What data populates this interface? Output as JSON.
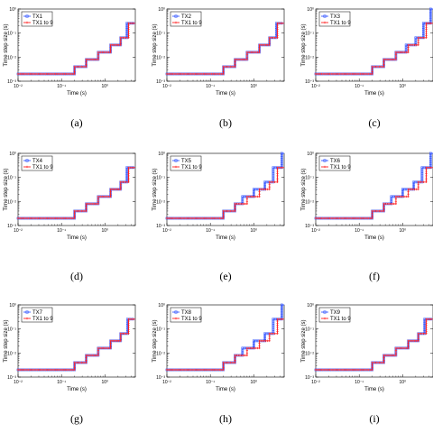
{
  "chart_data": [
    {
      "panel": "(a)",
      "type": "line",
      "xlabel": "Time (s)",
      "ylabel": "Time step size (s)",
      "xscale": "log",
      "yscale": "log",
      "xlim": [
        0.01,
        5
      ],
      "ylim": [
        0.001,
        1
      ],
      "xticks": [
        "10⁻²",
        "10⁻¹",
        "10⁰"
      ],
      "yticks": [
        "10⁻³",
        "10⁻²",
        "10⁻¹",
        "10⁰"
      ],
      "legend_position": "top-left",
      "series": [
        {
          "name": "TX1",
          "color": "#3355ff",
          "marker": "square",
          "x": [
            0.01,
            0.2,
            0.2,
            0.37,
            0.37,
            0.7,
            0.7,
            1.35,
            1.35,
            2.3,
            2.3,
            3.2,
            3.2,
            5
          ],
          "y": [
            0.002,
            0.002,
            0.004,
            0.004,
            0.008,
            0.008,
            0.016,
            0.016,
            0.032,
            0.032,
            0.064,
            0.064,
            0.256,
            0.256
          ]
        },
        {
          "name": "TX1 to 9",
          "color": "#ff2020",
          "marker": "star",
          "x": [
            0.01,
            0.2,
            0.2,
            0.37,
            0.37,
            0.7,
            0.7,
            1.35,
            1.35,
            2.3,
            2.3,
            3.5,
            3.5,
            5
          ],
          "y": [
            0.002,
            0.002,
            0.004,
            0.004,
            0.008,
            0.008,
            0.016,
            0.016,
            0.032,
            0.032,
            0.064,
            0.064,
            0.256,
            0.256
          ]
        }
      ]
    },
    {
      "panel": "(b)",
      "type": "line",
      "xlabel": "Time (s)",
      "ylabel": "Time step size (s)",
      "xscale": "log",
      "yscale": "log",
      "xlim": [
        0.01,
        5
      ],
      "ylim": [
        0.001,
        1
      ],
      "xticks": [
        "10⁻²",
        "10⁻¹",
        "10⁰"
      ],
      "yticks": [
        "10⁻³",
        "10⁻²",
        "10⁻¹",
        "10⁰"
      ],
      "legend_position": "top-left",
      "series": [
        {
          "name": "TX2",
          "color": "#3355ff",
          "marker": "square",
          "x": [
            0.01,
            0.2,
            0.2,
            0.37,
            0.37,
            0.7,
            0.7,
            1.35,
            1.35,
            2.3,
            2.3,
            3.3,
            3.3,
            5
          ],
          "y": [
            0.002,
            0.002,
            0.004,
            0.004,
            0.008,
            0.008,
            0.016,
            0.016,
            0.032,
            0.032,
            0.064,
            0.064,
            0.256,
            0.256
          ]
        },
        {
          "name": "TX1 to 9",
          "color": "#ff2020",
          "marker": "star",
          "x": [
            0.01,
            0.2,
            0.2,
            0.37,
            0.37,
            0.7,
            0.7,
            1.35,
            1.35,
            2.3,
            2.3,
            3.5,
            3.5,
            5
          ],
          "y": [
            0.002,
            0.002,
            0.004,
            0.004,
            0.008,
            0.008,
            0.016,
            0.016,
            0.032,
            0.032,
            0.064,
            0.064,
            0.256,
            0.256
          ]
        }
      ]
    },
    {
      "panel": "(c)",
      "type": "line",
      "xlabel": "Time (s)",
      "ylabel": "Time step size (s)",
      "xscale": "log",
      "yscale": "log",
      "xlim": [
        0.01,
        5
      ],
      "ylim": [
        0.001,
        1
      ],
      "xticks": [
        "10⁻²",
        "10⁻¹",
        "10⁰"
      ],
      "yticks": [
        "10⁻³",
        "10⁻²",
        "10⁻¹",
        "10⁰"
      ],
      "legend_position": "top-left",
      "series": [
        {
          "name": "TX3",
          "color": "#3355ff",
          "marker": "square",
          "x": [
            0.01,
            0.2,
            0.2,
            0.37,
            0.37,
            0.7,
            0.7,
            1.2,
            1.2,
            2.0,
            2.0,
            3.0,
            3.0,
            4.4,
            4.4,
            5
          ],
          "y": [
            0.002,
            0.002,
            0.004,
            0.004,
            0.008,
            0.008,
            0.016,
            0.016,
            0.032,
            0.032,
            0.064,
            0.064,
            0.256,
            0.256,
            1,
            1
          ]
        },
        {
          "name": "TX1 to 9",
          "color": "#ff2020",
          "marker": "star",
          "x": [
            0.01,
            0.2,
            0.2,
            0.37,
            0.37,
            0.7,
            0.7,
            1.35,
            1.35,
            2.3,
            2.3,
            3.5,
            3.5,
            5
          ],
          "y": [
            0.002,
            0.002,
            0.004,
            0.004,
            0.008,
            0.008,
            0.016,
            0.016,
            0.032,
            0.032,
            0.064,
            0.064,
            0.256,
            0.256
          ]
        }
      ]
    },
    {
      "panel": "(d)",
      "type": "line",
      "xlabel": "Time (s)",
      "ylabel": "Time step size (s)",
      "xscale": "log",
      "yscale": "log",
      "xlim": [
        0.01,
        5
      ],
      "ylim": [
        0.001,
        1
      ],
      "xticks": [
        "10⁻²",
        "10⁻¹",
        "10⁰"
      ],
      "yticks": [
        "10⁻³",
        "10⁻²",
        "10⁻¹",
        "10⁰"
      ],
      "legend_position": "top-left",
      "series": [
        {
          "name": "TX4",
          "color": "#3355ff",
          "marker": "square",
          "x": [
            0.01,
            0.2,
            0.2,
            0.37,
            0.37,
            0.7,
            0.7,
            1.35,
            1.35,
            2.3,
            2.3,
            3.2,
            3.2,
            5
          ],
          "y": [
            0.002,
            0.002,
            0.004,
            0.004,
            0.008,
            0.008,
            0.016,
            0.016,
            0.032,
            0.032,
            0.064,
            0.064,
            0.256,
            0.256
          ]
        },
        {
          "name": "TX1 to 9",
          "color": "#ff2020",
          "marker": "star",
          "x": [
            0.01,
            0.2,
            0.2,
            0.37,
            0.37,
            0.7,
            0.7,
            1.35,
            1.35,
            2.3,
            2.3,
            3.5,
            3.5,
            5
          ],
          "y": [
            0.002,
            0.002,
            0.004,
            0.004,
            0.008,
            0.008,
            0.016,
            0.016,
            0.032,
            0.032,
            0.064,
            0.064,
            0.256,
            0.256
          ]
        }
      ]
    },
    {
      "panel": "(e)",
      "type": "line",
      "xlabel": "Time (s)",
      "ylabel": "Time step size (s)",
      "xscale": "log",
      "yscale": "log",
      "xlim": [
        0.01,
        5
      ],
      "ylim": [
        0.001,
        1
      ],
      "xticks": [
        "10⁻²",
        "10⁻¹",
        "10⁰"
      ],
      "yticks": [
        "10⁻³",
        "10⁻²",
        "10⁻¹",
        "10⁰"
      ],
      "legend_position": "top-left",
      "series": [
        {
          "name": "TX5",
          "color": "#3355ff",
          "marker": "square",
          "x": [
            0.01,
            0.2,
            0.2,
            0.37,
            0.37,
            0.55,
            0.55,
            1.0,
            1.0,
            1.8,
            1.8,
            2.8,
            2.8,
            4.4,
            4.4,
            5
          ],
          "y": [
            0.002,
            0.002,
            0.004,
            0.004,
            0.008,
            0.008,
            0.016,
            0.016,
            0.032,
            0.032,
            0.064,
            0.064,
            0.256,
            0.256,
            1,
            1
          ]
        },
        {
          "name": "TX1 to 9",
          "color": "#ff2020",
          "marker": "star",
          "x": [
            0.01,
            0.2,
            0.2,
            0.37,
            0.37,
            0.7,
            0.7,
            1.35,
            1.35,
            2.3,
            2.3,
            3.5,
            3.5,
            5
          ],
          "y": [
            0.002,
            0.002,
            0.004,
            0.004,
            0.008,
            0.008,
            0.016,
            0.016,
            0.032,
            0.032,
            0.064,
            0.064,
            0.256,
            0.256
          ]
        }
      ]
    },
    {
      "panel": "(f)",
      "type": "line",
      "xlabel": "Time (s)",
      "ylabel": "Time step size (s)",
      "xscale": "log",
      "yscale": "log",
      "xlim": [
        0.01,
        5
      ],
      "ylim": [
        0.001,
        1
      ],
      "xticks": [
        "10⁻²",
        "10⁻¹",
        "10⁰"
      ],
      "yticks": [
        "10⁻³",
        "10⁻²",
        "10⁻¹",
        "10⁰"
      ],
      "legend_position": "top-left",
      "series": [
        {
          "name": "TX6",
          "color": "#3355ff",
          "marker": "square",
          "x": [
            0.01,
            0.2,
            0.2,
            0.37,
            0.37,
            0.55,
            0.55,
            1.0,
            1.0,
            1.8,
            1.8,
            2.8,
            2.8,
            4.4,
            4.4,
            5
          ],
          "y": [
            0.002,
            0.002,
            0.004,
            0.004,
            0.008,
            0.008,
            0.016,
            0.016,
            0.032,
            0.032,
            0.064,
            0.064,
            0.256,
            0.256,
            1,
            1
          ]
        },
        {
          "name": "TX1 to 9",
          "color": "#ff2020",
          "marker": "star",
          "x": [
            0.01,
            0.2,
            0.2,
            0.37,
            0.37,
            0.7,
            0.7,
            1.35,
            1.35,
            2.3,
            2.3,
            3.5,
            3.5,
            5
          ],
          "y": [
            0.002,
            0.002,
            0.004,
            0.004,
            0.008,
            0.008,
            0.016,
            0.016,
            0.032,
            0.032,
            0.064,
            0.064,
            0.256,
            0.256
          ]
        }
      ]
    },
    {
      "panel": "(g)",
      "type": "line",
      "xlabel": "Time (s)",
      "ylabel": "Time step size (s)",
      "xscale": "log",
      "yscale": "log",
      "xlim": [
        0.01,
        5
      ],
      "ylim": [
        0.001,
        1
      ],
      "xticks": [
        "10⁻²",
        "10⁻¹",
        "10⁰"
      ],
      "yticks": [
        "10⁻³",
        "10⁻²",
        "10⁻¹",
        "10⁰"
      ],
      "legend_position": "top-left",
      "series": [
        {
          "name": "TX7",
          "color": "#3355ff",
          "marker": "square",
          "x": [
            0.01,
            0.2,
            0.2,
            0.37,
            0.37,
            0.7,
            0.7,
            1.35,
            1.35,
            2.3,
            2.3,
            3.3,
            3.3,
            5
          ],
          "y": [
            0.002,
            0.002,
            0.004,
            0.004,
            0.008,
            0.008,
            0.016,
            0.016,
            0.032,
            0.032,
            0.064,
            0.064,
            0.256,
            0.256
          ]
        },
        {
          "name": "TX1 to 9",
          "color": "#ff2020",
          "marker": "star",
          "x": [
            0.01,
            0.2,
            0.2,
            0.37,
            0.37,
            0.7,
            0.7,
            1.35,
            1.35,
            2.3,
            2.3,
            3.5,
            3.5,
            5
          ],
          "y": [
            0.002,
            0.002,
            0.004,
            0.004,
            0.008,
            0.008,
            0.016,
            0.016,
            0.032,
            0.032,
            0.064,
            0.064,
            0.256,
            0.256
          ]
        }
      ]
    },
    {
      "panel": "(h)",
      "type": "line",
      "xlabel": "Time (s)",
      "ylabel": "Time step size (s)",
      "xscale": "log",
      "yscale": "log",
      "xlim": [
        0.01,
        5
      ],
      "ylim": [
        0.001,
        1
      ],
      "xticks": [
        "10⁻²",
        "10⁻¹",
        "10⁰"
      ],
      "yticks": [
        "10⁻³",
        "10⁻²",
        "10⁻¹",
        "10⁰"
      ],
      "legend_position": "top-left",
      "series": [
        {
          "name": "TX8",
          "color": "#3355ff",
          "marker": "square",
          "x": [
            0.01,
            0.2,
            0.2,
            0.37,
            0.37,
            0.55,
            0.55,
            1.0,
            1.0,
            1.8,
            1.8,
            2.8,
            2.8,
            4.4,
            4.4,
            5
          ],
          "y": [
            0.002,
            0.002,
            0.004,
            0.004,
            0.008,
            0.008,
            0.016,
            0.016,
            0.032,
            0.032,
            0.064,
            0.064,
            0.256,
            0.256,
            1,
            1
          ]
        },
        {
          "name": "TX1 to 9",
          "color": "#ff2020",
          "marker": "star",
          "x": [
            0.01,
            0.2,
            0.2,
            0.37,
            0.37,
            0.7,
            0.7,
            1.35,
            1.35,
            2.3,
            2.3,
            3.5,
            3.5,
            5
          ],
          "y": [
            0.002,
            0.002,
            0.004,
            0.004,
            0.008,
            0.008,
            0.016,
            0.016,
            0.032,
            0.032,
            0.064,
            0.064,
            0.256,
            0.256
          ]
        }
      ]
    },
    {
      "panel": "(i)",
      "type": "line",
      "xlabel": "Time (s)",
      "ylabel": "Time step size (s)",
      "xscale": "log",
      "yscale": "log",
      "xlim": [
        0.01,
        5
      ],
      "ylim": [
        0.001,
        1
      ],
      "xticks": [
        "10⁻²",
        "10⁻¹",
        "10⁰"
      ],
      "yticks": [
        "10⁻³",
        "10⁻²",
        "10⁻¹",
        "10⁰"
      ],
      "legend_position": "top-left",
      "series": [
        {
          "name": "TX9",
          "color": "#3355ff",
          "marker": "square",
          "x": [
            0.01,
            0.2,
            0.2,
            0.37,
            0.37,
            0.7,
            0.7,
            1.35,
            1.35,
            2.3,
            2.3,
            3.2,
            3.2,
            5
          ],
          "y": [
            0.002,
            0.002,
            0.004,
            0.004,
            0.008,
            0.008,
            0.016,
            0.016,
            0.032,
            0.032,
            0.064,
            0.064,
            0.256,
            0.256
          ]
        },
        {
          "name": "TX1 to 9",
          "color": "#ff2020",
          "marker": "star",
          "x": [
            0.01,
            0.2,
            0.2,
            0.37,
            0.37,
            0.7,
            0.7,
            1.35,
            1.35,
            2.3,
            2.3,
            3.5,
            3.5,
            5
          ],
          "y": [
            0.002,
            0.002,
            0.004,
            0.004,
            0.008,
            0.008,
            0.016,
            0.016,
            0.032,
            0.032,
            0.064,
            0.064,
            0.256,
            0.256
          ]
        }
      ]
    }
  ]
}
